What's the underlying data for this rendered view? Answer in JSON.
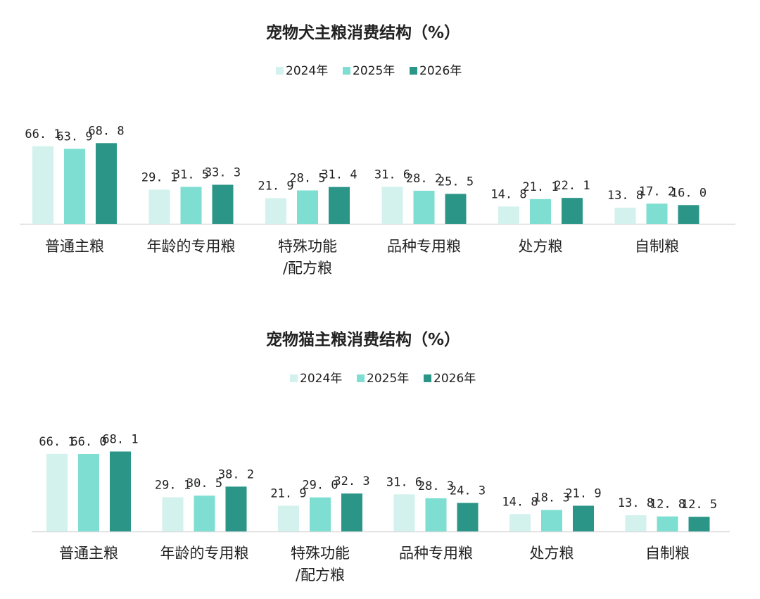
{
  "colors": {
    "y2024": "#d3f2ee",
    "y2025": "#7fded2",
    "y2026": "#2b9688",
    "axis": "#d9d9d9",
    "text": "#222222"
  },
  "chart_data": [
    {
      "type": "bar",
      "title": "宠物犬主粮消费结构（%）",
      "categories": [
        [
          "普通主粮"
        ],
        [
          "年龄的专用粮"
        ],
        [
          "特殊功能",
          "/配方粮"
        ],
        [
          "品种专用粮"
        ],
        [
          "处方粮"
        ],
        [
          "自制粮"
        ]
      ],
      "series": [
        {
          "name": "2024年",
          "values": [
            66.1,
            29.1,
            21.9,
            31.6,
            14.8,
            13.8
          ],
          "labels": [
            "66. 1",
            "29. 1",
            "21. 9",
            "31. 6",
            "14. 8",
            "13. 8"
          ]
        },
        {
          "name": "2025年",
          "values": [
            63.9,
            31.5,
            28.5,
            28.2,
            21.1,
            17.2
          ],
          "labels": [
            "63. 9",
            "31. 5",
            "28. 5",
            "28. 2",
            "21. 1",
            "17. 2"
          ]
        },
        {
          "name": "2026年",
          "values": [
            68.8,
            33.3,
            31.4,
            25.5,
            22.1,
            16.0
          ],
          "labels": [
            "68. 8",
            "33. 3",
            "31. 4",
            "25. 5",
            "22. 1",
            "16. 0"
          ]
        }
      ],
      "legend": "top-center",
      "grid": false,
      "ylim": [
        0,
        80
      ]
    },
    {
      "type": "bar",
      "title": "宠物猫主粮消费结构（%）",
      "categories": [
        [
          "普通主粮"
        ],
        [
          "年龄的专用粮"
        ],
        [
          "特殊功能",
          "/配方粮"
        ],
        [
          "品种专用粮"
        ],
        [
          "处方粮"
        ],
        [
          "自制粮"
        ]
      ],
      "series": [
        {
          "name": "2024年",
          "values": [
            66.1,
            29.1,
            21.9,
            31.6,
            14.8,
            13.8
          ],
          "labels": [
            "66. 1",
            "29. 1",
            "21. 9",
            "31. 6",
            "14. 8",
            "13. 8"
          ]
        },
        {
          "name": "2025年",
          "values": [
            66.0,
            30.5,
            29.0,
            28.3,
            18.3,
            12.8
          ],
          "labels": [
            "66. 0",
            "30. 5",
            "29. 0",
            "28. 3",
            "18. 3",
            "12. 8"
          ]
        },
        {
          "name": "2026年",
          "values": [
            68.1,
            38.2,
            32.3,
            24.3,
            21.9,
            12.5
          ],
          "labels": [
            "68. 1",
            "38. 2",
            "32. 3",
            "24. 3",
            "21. 9",
            "12. 5"
          ]
        }
      ],
      "legend": "top-center",
      "grid": false,
      "ylim": [
        0,
        80
      ]
    }
  ]
}
